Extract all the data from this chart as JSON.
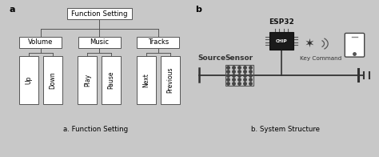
{
  "bg_left": "#c8a87a",
  "bg_right": "#e8e8e8",
  "fig_bg": "#c8c8c8",
  "label_a": "a",
  "label_b": "b",
  "caption_a": "a. Function Setting",
  "caption_b": "b. System Structure",
  "tree_root": "Function Setting",
  "tree_mid": [
    "Volume",
    "Music",
    "Tracks"
  ],
  "tree_leaves": [
    [
      "Up",
      "Down"
    ],
    [
      "Play",
      "Pause"
    ],
    [
      "Next",
      "Previous"
    ]
  ],
  "esp32_label": "ESP32",
  "key_command_label": "Key Command",
  "source_label": "Source",
  "sensor_label": "Sensor"
}
